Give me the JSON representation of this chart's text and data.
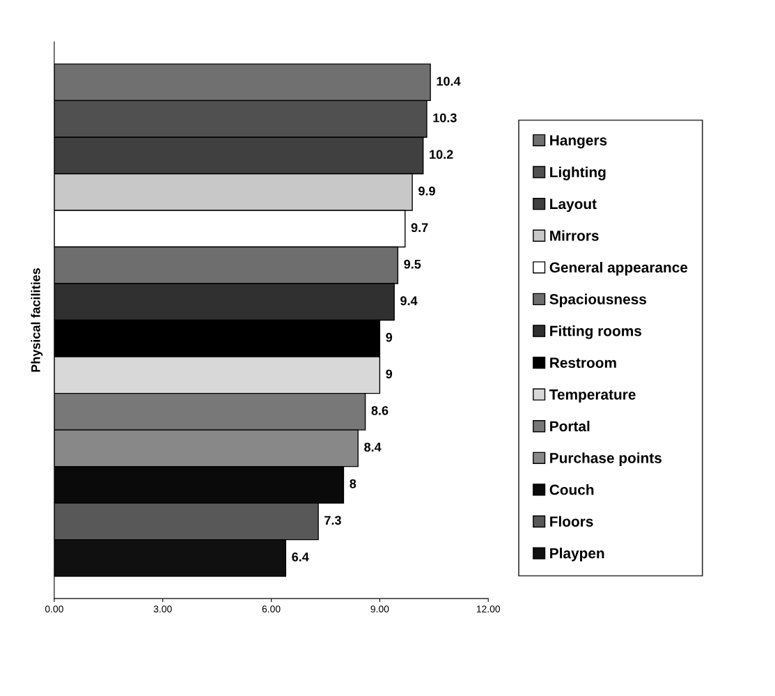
{
  "chart_data": {
    "type": "bar",
    "orientation": "horizontal",
    "categories": [
      "Physical facilities"
    ],
    "series": [
      {
        "name": "Hangers",
        "color": "#707070",
        "values": [
          10.4
        ]
      },
      {
        "name": "Lighting",
        "color": "#505050",
        "values": [
          10.3
        ]
      },
      {
        "name": "Layout",
        "color": "#404040",
        "values": [
          10.2
        ]
      },
      {
        "name": "Mirrors",
        "color": "#c8c8c8",
        "values": [
          9.9
        ]
      },
      {
        "name": "General appearance",
        "color": "#ffffff",
        "values": [
          9.7
        ]
      },
      {
        "name": "Spaciousness",
        "color": "#6e6e6e",
        "values": [
          9.5
        ]
      },
      {
        "name": "Fitting rooms",
        "color": "#303030",
        "values": [
          9.4
        ]
      },
      {
        "name": "Restroom",
        "color": "#000000",
        "values": [
          9
        ]
      },
      {
        "name": "Temperature",
        "color": "#d8d8d8",
        "values": [
          9
        ]
      },
      {
        "name": "Portal",
        "color": "#787878",
        "values": [
          8.6
        ]
      },
      {
        "name": "Purchase points",
        "color": "#888888",
        "values": [
          8.4
        ]
      },
      {
        "name": "Couch",
        "color": "#0a0a0a",
        "values": [
          8
        ]
      },
      {
        "name": "Floors",
        "color": "#585858",
        "values": [
          7.3
        ]
      },
      {
        "name": "Playpen",
        "color": "#101010",
        "values": [
          6.4
        ]
      }
    ],
    "xlim": [
      0,
      12
    ],
    "xticks": [
      {
        "value": 0,
        "label": "0.00"
      },
      {
        "value": 3,
        "label": "3.00"
      },
      {
        "value": 6,
        "label": "6.00"
      },
      {
        "value": 9,
        "label": "9.00"
      },
      {
        "value": 12,
        "label": "12.00"
      }
    ],
    "data_labels": true,
    "legend": "right",
    "grid": false
  }
}
